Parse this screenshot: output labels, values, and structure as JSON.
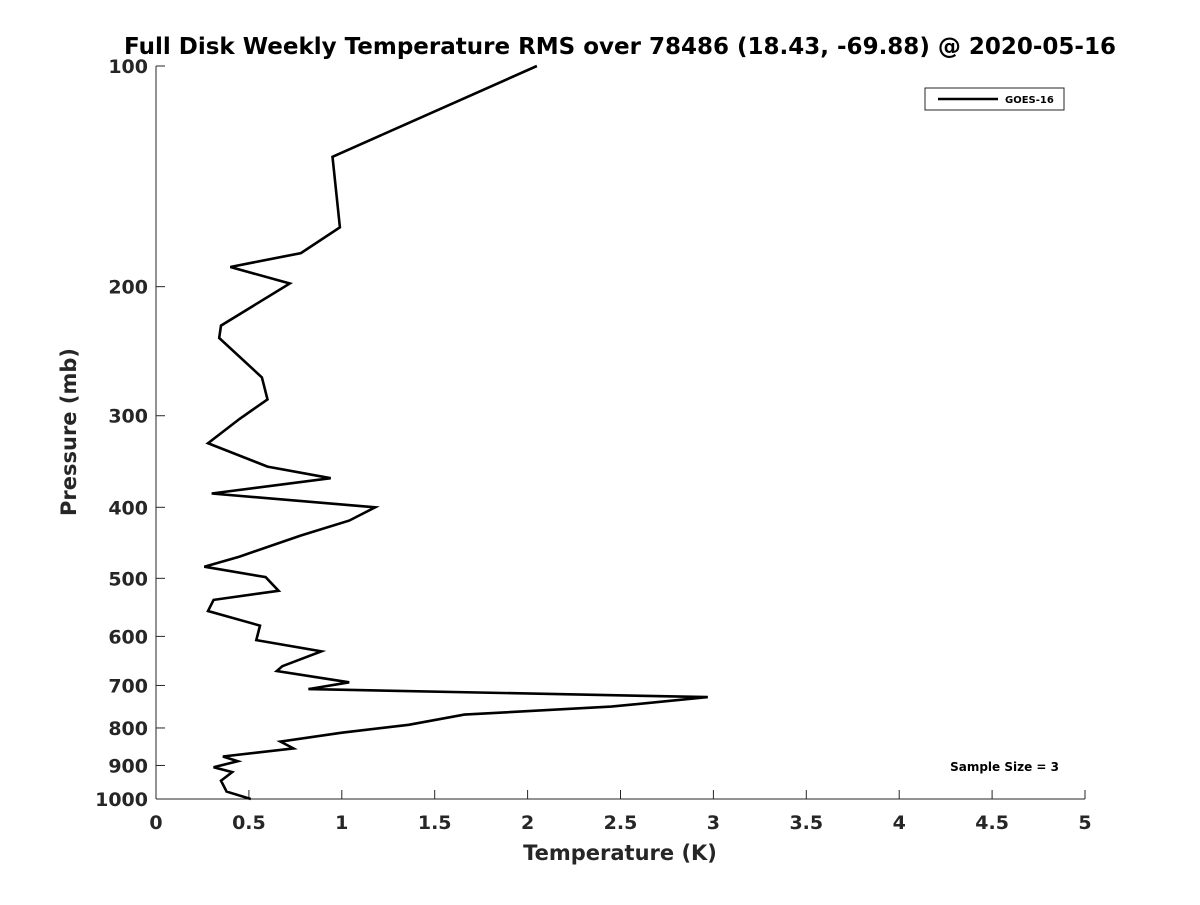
{
  "chart_data": {
    "type": "line",
    "title": "Full Disk Weekly Temperature RMS over 78486 (18.43, -69.88) @ 2020-05-16",
    "xlabel": "Temperature (K)",
    "ylabel": "Pressure (mb)",
    "xlim": [
      0,
      5
    ],
    "ylim": [
      100,
      1000
    ],
    "y_scale": "log",
    "y_reversed": true,
    "x_ticks": [
      0,
      0.5,
      1,
      1.5,
      2,
      2.5,
      3,
      3.5,
      4,
      4.5,
      5
    ],
    "x_tick_labels": [
      "0",
      "0.5",
      "1",
      "1.5",
      "2",
      "2.5",
      "3",
      "3.5",
      "4",
      "4.5",
      "5"
    ],
    "y_ticks": [
      100,
      200,
      300,
      400,
      500,
      600,
      700,
      800,
      900,
      1000
    ],
    "y_tick_labels": [
      "100",
      "200",
      "300",
      "400",
      "500",
      "600",
      "700",
      "800",
      "900",
      "1000"
    ],
    "grid": false,
    "legend_position": "top-right",
    "annotation": "Sample Size = 3",
    "series": [
      {
        "name": "GOES-16",
        "color": "#000000",
        "x": [
          2.05,
          0.95,
          0.99,
          0.78,
          0.4,
          0.72,
          0.35,
          0.34,
          0.57,
          0.6,
          0.45,
          0.28,
          0.6,
          0.94,
          0.3,
          1.18,
          1.04,
          0.78,
          0.45,
          0.26,
          0.59,
          0.66,
          0.31,
          0.28,
          0.56,
          0.54,
          0.89,
          0.68,
          0.65,
          1.04,
          0.82,
          2.97,
          2.45,
          1.66,
          1.36,
          1.0,
          0.67,
          0.74,
          0.36,
          0.44,
          0.31,
          0.41,
          0.35,
          0.38,
          0.51
        ],
        "y": [
          100,
          133,
          166,
          180,
          188,
          198,
          226,
          235,
          266,
          285,
          303,
          327,
          352,
          365,
          383,
          400,
          417,
          437,
          467,
          482,
          498,
          520,
          535,
          554,
          580,
          607,
          629,
          659,
          669,
          693,
          708,
          726,
          748,
          767,
          792,
          812,
          835,
          853,
          875,
          888,
          905,
          919,
          944,
          977,
          1000
        ]
      }
    ]
  }
}
